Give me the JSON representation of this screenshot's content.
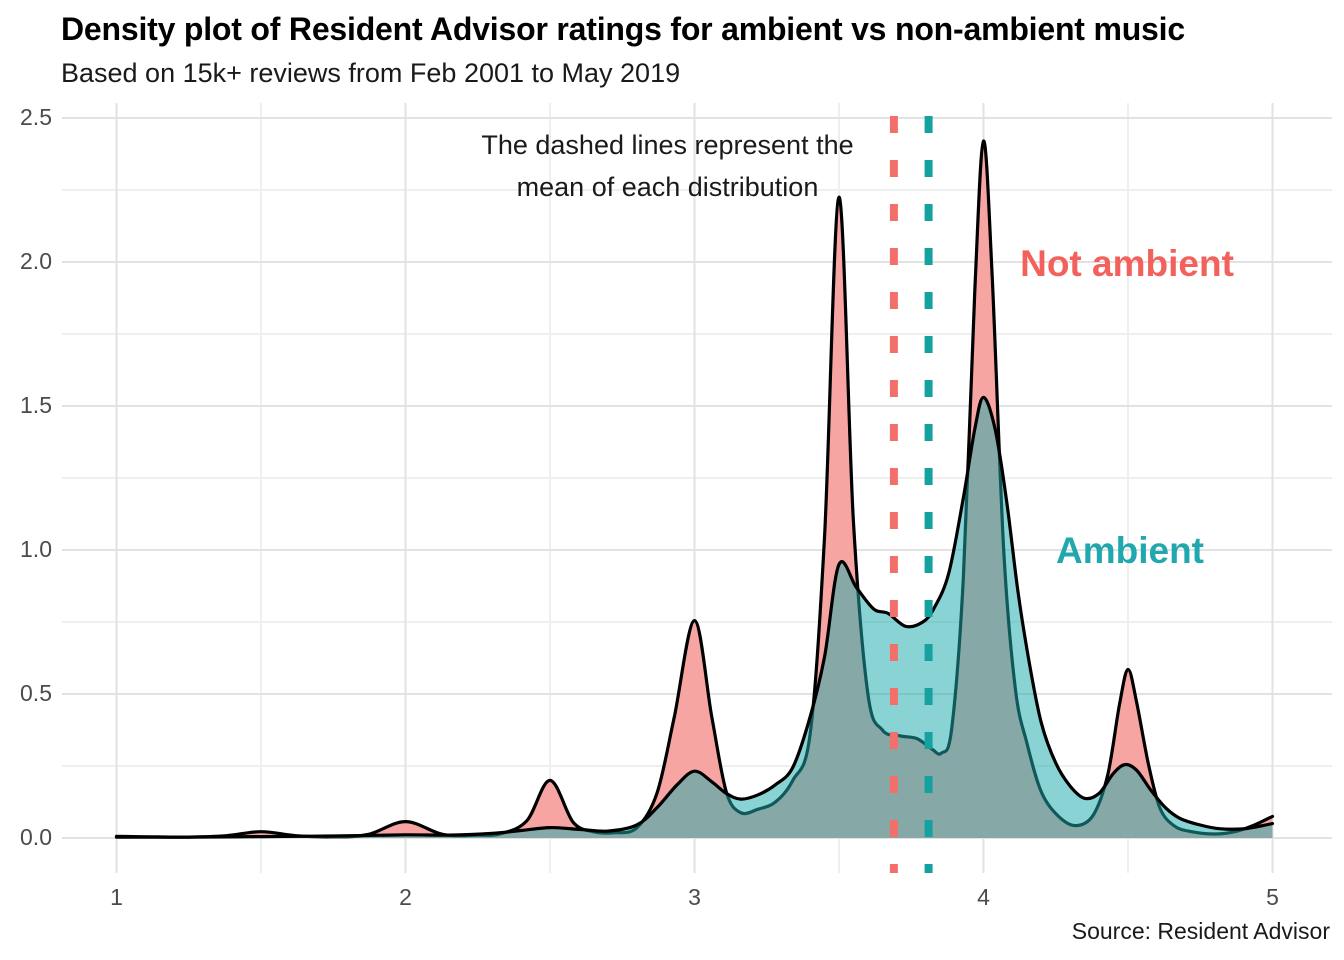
{
  "header": {
    "title": "Density plot of Resident Advisor ratings for ambient vs non-ambient music",
    "subtitle": "Based on 15k+ reviews from Feb 2001 to May 2019"
  },
  "annotation": {
    "line1": "The dashed lines represent the",
    "line2": "mean of each distribution"
  },
  "series_labels": {
    "not_ambient": "Not ambient",
    "ambient": "Ambient"
  },
  "source": "Source: Resident Advisor",
  "colors": {
    "not_ambient_fill": "#F6A5A2",
    "ambient_fill_rgba": "rgba(30,170,172,0.52)",
    "outline": "#000000",
    "not_ambient_accent": "#F2615C",
    "ambient_accent": "#21A8AE",
    "not_ambient_mean_line": "#F27069",
    "ambient_mean_line": "#16A1A1",
    "grid_major": "#e2e2e2",
    "grid_minor": "#efefef"
  },
  "chart_data": {
    "type": "area",
    "subtype": "density",
    "title": "Density plot of Resident Advisor ratings for ambient vs non-ambient music",
    "xlabel": "",
    "ylabel": "",
    "xlim": [
      1,
      5
    ],
    "ylim": [
      0,
      2.5
    ],
    "x_ticks": [
      "1",
      "2",
      "3",
      "4",
      "5"
    ],
    "x_tick_values": [
      1,
      2,
      3,
      4,
      5
    ],
    "y_ticks": [
      "0.0",
      "0.5",
      "1.0",
      "1.5",
      "2.0",
      "2.5"
    ],
    "y_tick_values": [
      0,
      0.5,
      1.0,
      1.5,
      2.0,
      2.5
    ],
    "grid": "on",
    "legend_position": "labels-on-plot",
    "means": {
      "not_ambient": 3.69,
      "ambient": 3.81
    },
    "series": [
      {
        "name": "Not ambient",
        "points": [
          [
            1.0,
            0.006
          ],
          [
            1.12,
            0.004
          ],
          [
            1.25,
            0.003
          ],
          [
            1.38,
            0.008
          ],
          [
            1.5,
            0.022
          ],
          [
            1.62,
            0.008
          ],
          [
            1.75,
            0.004
          ],
          [
            1.87,
            0.012
          ],
          [
            2.0,
            0.057
          ],
          [
            2.13,
            0.012
          ],
          [
            2.25,
            0.01
          ],
          [
            2.33,
            0.015
          ],
          [
            2.42,
            0.06
          ],
          [
            2.5,
            0.2
          ],
          [
            2.58,
            0.055
          ],
          [
            2.65,
            0.022
          ],
          [
            2.72,
            0.018
          ],
          [
            2.8,
            0.035
          ],
          [
            2.87,
            0.155
          ],
          [
            2.93,
            0.42
          ],
          [
            3.0,
            0.755
          ],
          [
            3.06,
            0.42
          ],
          [
            3.11,
            0.16
          ],
          [
            3.16,
            0.088
          ],
          [
            3.22,
            0.1
          ],
          [
            3.28,
            0.125
          ],
          [
            3.34,
            0.2
          ],
          [
            3.4,
            0.36
          ],
          [
            3.45,
            1.05
          ],
          [
            3.5,
            2.225
          ],
          [
            3.55,
            1.1
          ],
          [
            3.6,
            0.5
          ],
          [
            3.65,
            0.375
          ],
          [
            3.71,
            0.355
          ],
          [
            3.77,
            0.345
          ],
          [
            3.82,
            0.31
          ],
          [
            3.855,
            0.295
          ],
          [
            3.89,
            0.38
          ],
          [
            3.93,
            0.9
          ],
          [
            3.97,
            1.9
          ],
          [
            4.0,
            2.42
          ],
          [
            4.03,
            1.95
          ],
          [
            4.07,
            1.0
          ],
          [
            4.11,
            0.52
          ],
          [
            4.15,
            0.33
          ],
          [
            4.2,
            0.16
          ],
          [
            4.26,
            0.075
          ],
          [
            4.32,
            0.043
          ],
          [
            4.38,
            0.08
          ],
          [
            4.43,
            0.22
          ],
          [
            4.47,
            0.46
          ],
          [
            4.5,
            0.585
          ],
          [
            4.53,
            0.47
          ],
          [
            4.57,
            0.26
          ],
          [
            4.61,
            0.105
          ],
          [
            4.66,
            0.042
          ],
          [
            4.72,
            0.022
          ],
          [
            4.8,
            0.014
          ],
          [
            4.87,
            0.022
          ],
          [
            4.93,
            0.042
          ],
          [
            5.0,
            0.075
          ]
        ]
      },
      {
        "name": "Ambient",
        "points": [
          [
            1.0,
            0.003
          ],
          [
            1.25,
            0.003
          ],
          [
            1.5,
            0.005
          ],
          [
            1.75,
            0.007
          ],
          [
            2.0,
            0.011
          ],
          [
            2.15,
            0.01
          ],
          [
            2.3,
            0.016
          ],
          [
            2.4,
            0.026
          ],
          [
            2.5,
            0.036
          ],
          [
            2.6,
            0.03
          ],
          [
            2.7,
            0.024
          ],
          [
            2.8,
            0.045
          ],
          [
            2.87,
            0.105
          ],
          [
            2.94,
            0.185
          ],
          [
            3.0,
            0.232
          ],
          [
            3.06,
            0.195
          ],
          [
            3.11,
            0.155
          ],
          [
            3.16,
            0.135
          ],
          [
            3.22,
            0.15
          ],
          [
            3.28,
            0.185
          ],
          [
            3.34,
            0.245
          ],
          [
            3.4,
            0.42
          ],
          [
            3.45,
            0.63
          ],
          [
            3.5,
            0.95
          ],
          [
            3.56,
            0.87
          ],
          [
            3.62,
            0.795
          ],
          [
            3.67,
            0.78
          ],
          [
            3.73,
            0.735
          ],
          [
            3.79,
            0.75
          ],
          [
            3.83,
            0.8
          ],
          [
            3.88,
            0.92
          ],
          [
            3.93,
            1.18
          ],
          [
            3.97,
            1.42
          ],
          [
            4.0,
            1.53
          ],
          [
            4.04,
            1.42
          ],
          [
            4.08,
            1.17
          ],
          [
            4.12,
            0.85
          ],
          [
            4.16,
            0.6
          ],
          [
            4.2,
            0.4
          ],
          [
            4.25,
            0.26
          ],
          [
            4.3,
            0.18
          ],
          [
            4.35,
            0.138
          ],
          [
            4.4,
            0.155
          ],
          [
            4.45,
            0.225
          ],
          [
            4.49,
            0.255
          ],
          [
            4.53,
            0.235
          ],
          [
            4.58,
            0.165
          ],
          [
            4.63,
            0.105
          ],
          [
            4.68,
            0.068
          ],
          [
            4.75,
            0.045
          ],
          [
            4.82,
            0.032
          ],
          [
            4.9,
            0.032
          ],
          [
            4.95,
            0.04
          ],
          [
            5.0,
            0.05
          ]
        ]
      }
    ]
  }
}
